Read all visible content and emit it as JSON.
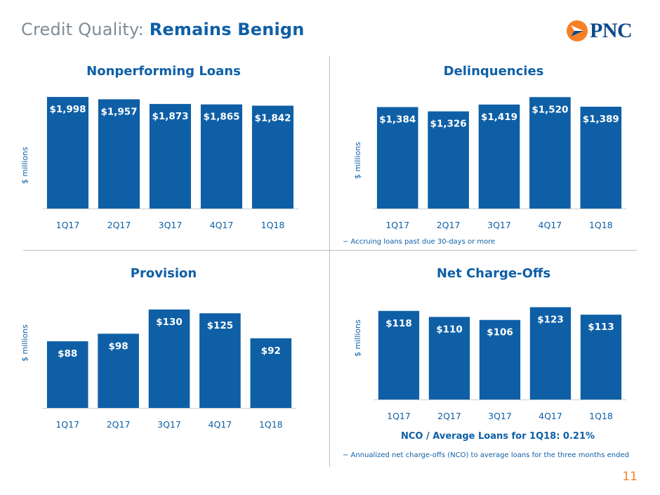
{
  "header": {
    "title_prefix": "Credit Quality: ",
    "title_emphasis": "Remains Benign",
    "logo_text": "PNC"
  },
  "colors": {
    "bar": "#0e5fa6",
    "accent": "#f58025",
    "text": "#0e5fa6",
    "muted": "#7f8c96"
  },
  "chart_data": [
    {
      "type": "bar",
      "title": "Nonperforming Loans",
      "ylabel": "$ millions",
      "categories": [
        "1Q17",
        "2Q17",
        "3Q17",
        "4Q17",
        "1Q18"
      ],
      "values": [
        1998,
        1957,
        1873,
        1865,
        1842
      ],
      "value_labels": [
        "$1,998",
        "$1,957",
        "$1,873",
        "$1,865",
        "$1,842"
      ],
      "ylim": [
        0,
        2100
      ]
    },
    {
      "type": "bar",
      "title": "Delinquencies",
      "ylabel": "$ millions",
      "categories": [
        "1Q17",
        "2Q17",
        "3Q17",
        "4Q17",
        "1Q18"
      ],
      "values": [
        1384,
        1326,
        1419,
        1520,
        1389
      ],
      "value_labels": [
        "$1,384",
        "$1,326",
        "$1,419",
        "$1,520",
        "$1,389"
      ],
      "ylim": [
        0,
        1600
      ],
      "footnote": "− Accruing loans past due 30-days or more"
    },
    {
      "type": "bar",
      "title": "Provision",
      "ylabel": "$ millions",
      "categories": [
        "1Q17",
        "2Q17",
        "3Q17",
        "4Q17",
        "1Q18"
      ],
      "values": [
        88,
        98,
        130,
        125,
        92
      ],
      "value_labels": [
        "$88",
        "$98",
        "$130",
        "$125",
        "$92"
      ],
      "ylim": [
        0,
        140
      ]
    },
    {
      "type": "bar",
      "title": "Net Charge-Offs",
      "ylabel": "$ millions",
      "categories": [
        "1Q17",
        "2Q17",
        "3Q17",
        "4Q17",
        "1Q18"
      ],
      "values": [
        118,
        110,
        106,
        123,
        113
      ],
      "value_labels": [
        "$118",
        "$110",
        "$106",
        "$123",
        "$113"
      ],
      "ylim": [
        0,
        130
      ],
      "subtitle": "NCO / Average Loans for 1Q18: 0.21%",
      "footnote": "− Annualized net charge-offs (NCO) to average loans for the three months ended"
    }
  ],
  "page_number": "11"
}
